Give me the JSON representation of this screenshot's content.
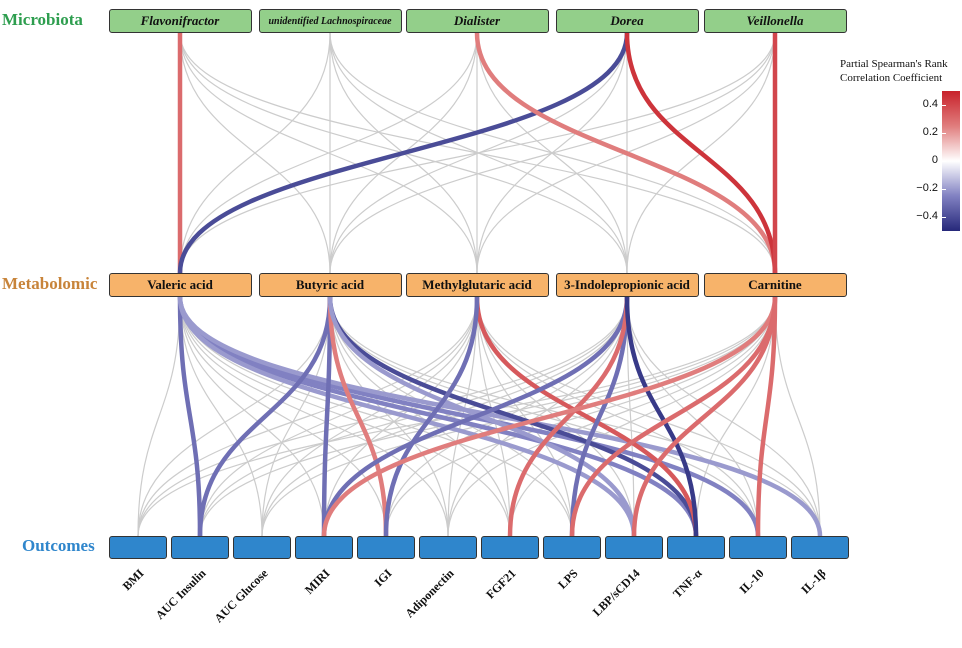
{
  "tiers": {
    "microbiota": {
      "label": "Microbiota",
      "color": "#2e9e4f"
    },
    "metabolomic": {
      "label": "Metabolomic",
      "color": "#c8843a"
    },
    "outcomes": {
      "label": "Outcomes",
      "color": "#2f86cc"
    }
  },
  "microbiota": [
    "Flavonifractor",
    "unidentified Lachnospiraceae",
    "Dialister",
    "Dorea",
    "Veillonella"
  ],
  "metabolites": [
    "Valeric acid",
    "Butyric acid",
    "Methylglutaric acid",
    "3-Indolepropionic acid",
    "Carnitine"
  ],
  "outcomes": [
    "BMI",
    "AUC Insulin",
    "AUC Glucose",
    "MIRI",
    "IGI",
    "Adiponectin",
    "FGF21",
    "LPS",
    "LBP/sCD14",
    "TNF-α",
    "IL-10",
    "IL-1β"
  ],
  "legend": {
    "title_line1": "Partial Spearman's Rank",
    "title_line2": "Correlation Coefficient",
    "ticks": [
      "0.4",
      "0.2",
      "0",
      "−0.2",
      "−0.4"
    ],
    "tick_values": [
      0.4,
      0.2,
      0,
      -0.2,
      -0.4
    ],
    "range": [
      -0.5,
      0.5
    ]
  },
  "colors": {
    "neutral": "#cccccc",
    "strong_pos": "#c8222b",
    "mid_pos": "#e07d7d",
    "mid_neg": "#7f7fc4",
    "strong_neg": "#26287a"
  },
  "micro_metab_links": [
    {
      "from": "Flavonifractor",
      "to": "Valeric acid",
      "r": 0.3
    },
    {
      "from": "Dorea",
      "to": "Valeric acid",
      "r": -0.4
    },
    {
      "from": "Dialister",
      "to": "Carnitine",
      "r": 0.25
    },
    {
      "from": "Dorea",
      "to": "Carnitine",
      "r": 0.45
    },
    {
      "from": "Veillonella",
      "to": "Carnitine",
      "r": 0.4
    }
  ],
  "metab_outcome_links": [
    {
      "from": "Valeric acid",
      "to": "AUC Insulin",
      "r": -0.3
    },
    {
      "from": "Valeric acid",
      "to": "TNF-α",
      "r": -0.25
    },
    {
      "from": "Valeric acid",
      "to": "IL-10",
      "r": -0.25
    },
    {
      "from": "Valeric acid",
      "to": "IL-1β",
      "r": -0.2
    },
    {
      "from": "Valeric acid",
      "to": "LBP/sCD14",
      "r": -0.2
    },
    {
      "from": "Butyric acid",
      "to": "AUC Insulin",
      "r": -0.3
    },
    {
      "from": "Butyric acid",
      "to": "MIRI",
      "r": -0.3
    },
    {
      "from": "Butyric acid",
      "to": "IGI",
      "r": 0.25
    },
    {
      "from": "Butyric acid",
      "to": "TNF-α",
      "r": -0.4
    },
    {
      "from": "Butyric acid",
      "to": "LBP/sCD14",
      "r": -0.2
    },
    {
      "from": "Methylglutaric acid",
      "to": "TNF-α",
      "r": 0.35
    },
    {
      "from": "Methylglutaric acid",
      "to": "IGI",
      "r": -0.3
    },
    {
      "from": "3-Indolepropionic acid",
      "to": "MIRI",
      "r": -0.3
    },
    {
      "from": "3-Indolepropionic acid",
      "to": "LPS",
      "r": -0.3
    },
    {
      "from": "3-Indolepropionic acid",
      "to": "FGF21",
      "r": 0.3
    },
    {
      "from": "3-Indolepropionic acid",
      "to": "TNF-α",
      "r": -0.45
    },
    {
      "from": "Carnitine",
      "to": "MIRI",
      "r": 0.25
    },
    {
      "from": "Carnitine",
      "to": "LPS",
      "r": 0.3
    },
    {
      "from": "Carnitine",
      "to": "LBP/sCD14",
      "r": 0.3
    },
    {
      "from": "Carnitine",
      "to": "IL-10",
      "r": 0.3
    }
  ]
}
